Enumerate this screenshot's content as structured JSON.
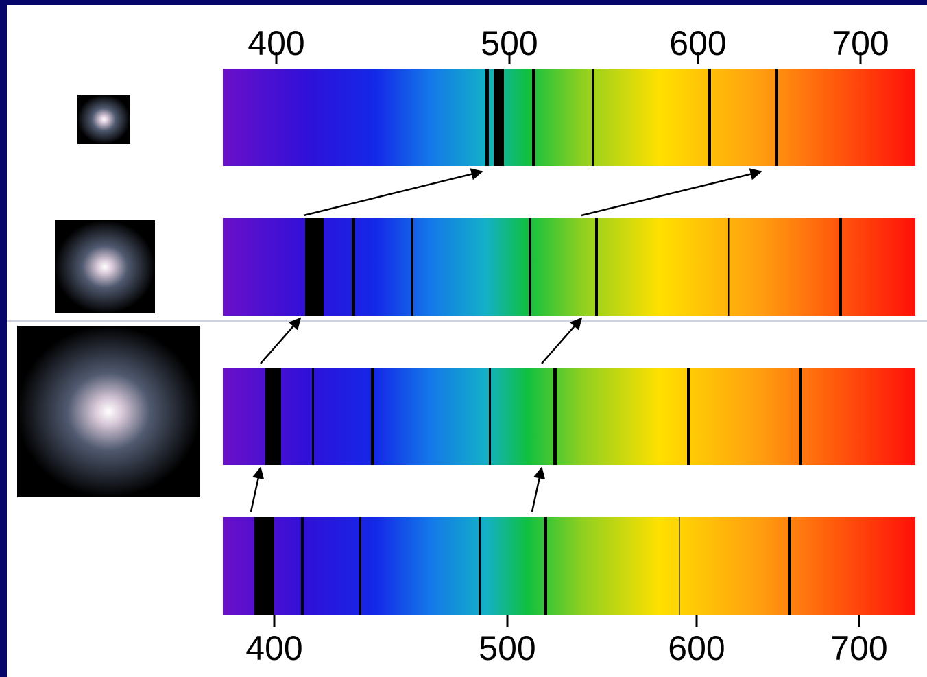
{
  "top_scale": {
    "ticks": [
      400,
      500,
      600,
      700
    ]
  },
  "bottom_scale": {
    "ticks": [
      400,
      500,
      600,
      700
    ]
  }
}
